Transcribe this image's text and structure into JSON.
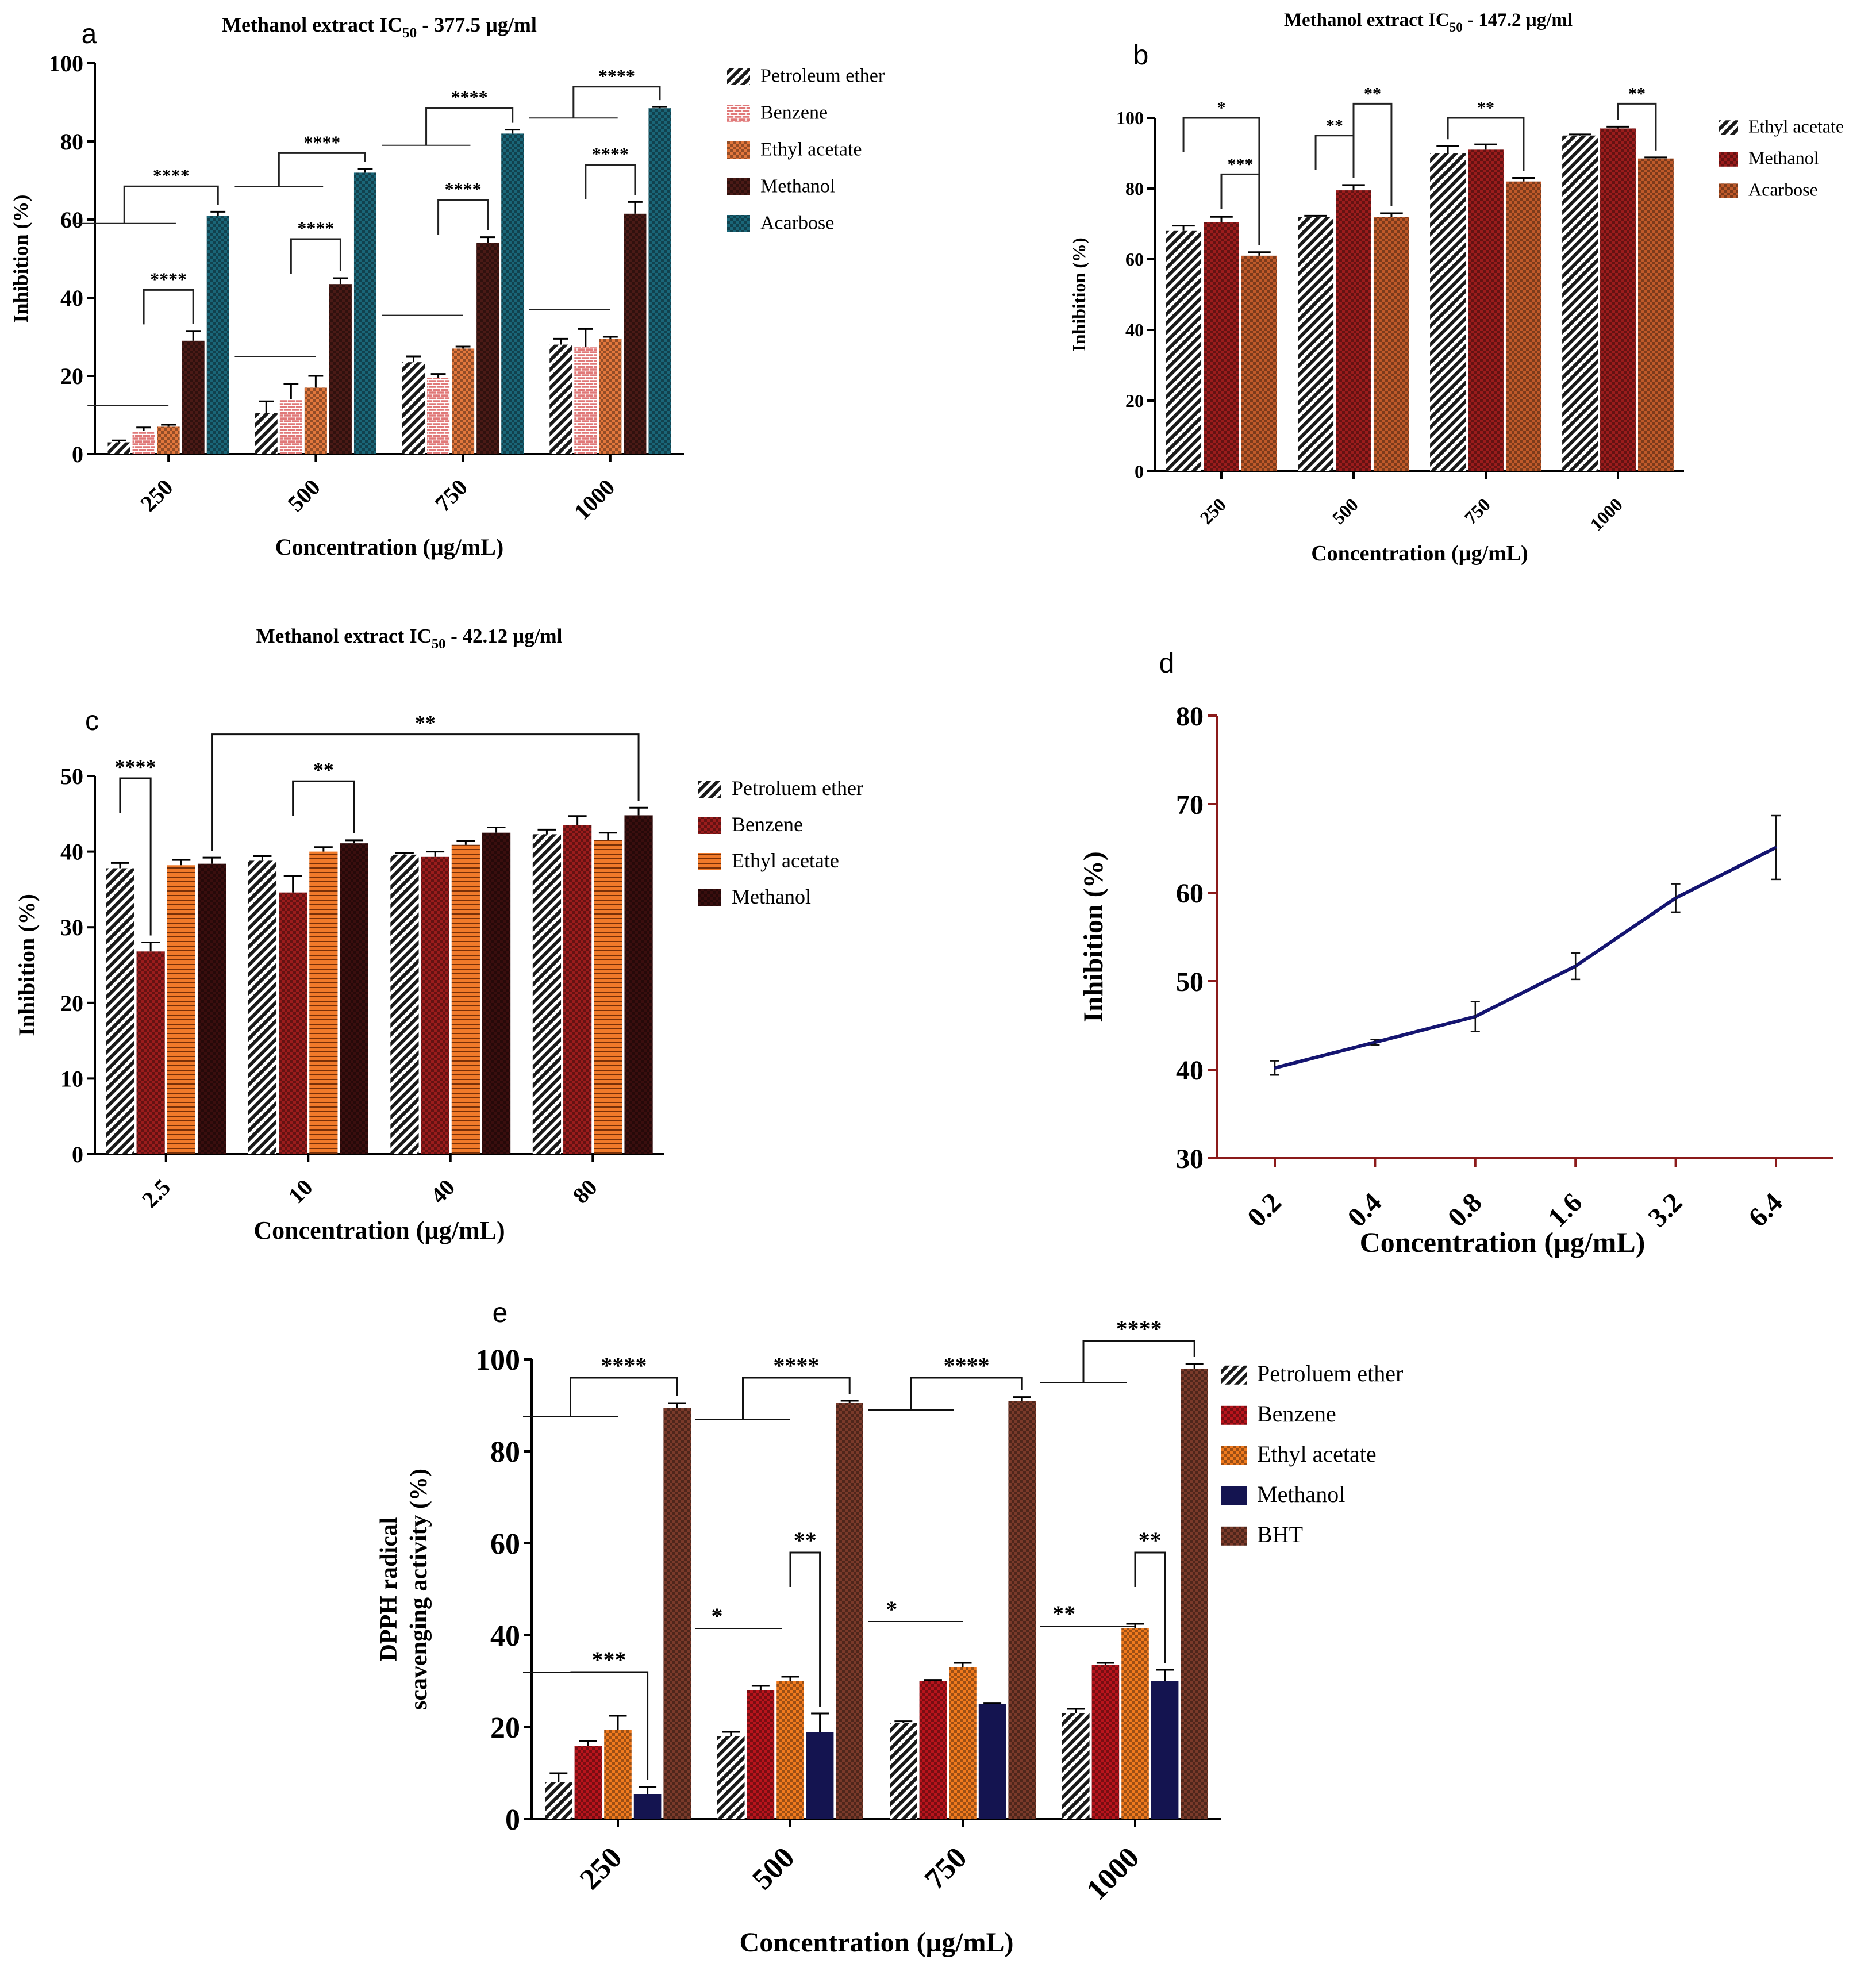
{
  "chart_data": [
    {
      "id": "a",
      "panel_label": "a",
      "type": "bar",
      "title_prefix": "Methanol extract IC",
      "title_sub": "50",
      "title_suffix": " - 377.5 µg/ml",
      "xlabel": "Concentration (µg/mL)",
      "ylabel": "Inhibition (%)",
      "ylim": [
        0,
        100
      ],
      "yticks": [
        0,
        20,
        40,
        60,
        80,
        100
      ],
      "categories": [
        "250",
        "500",
        "750",
        "1000"
      ],
      "series": [
        {
          "name": "Petroleum ether",
          "color": "#1a1a1a",
          "pattern": "diag",
          "values": [
            3,
            10.5,
            23.5,
            28
          ],
          "errors": [
            0.5,
            3,
            1.5,
            1.5
          ]
        },
        {
          "name": "Benzene",
          "color": "#e07878",
          "pattern": "bricks",
          "values": [
            6,
            14,
            19.5,
            27.5
          ],
          "errors": [
            0.8,
            4,
            1,
            4.5
          ]
        },
        {
          "name": "Ethyl acetate",
          "color": "#e2773c",
          "pattern": "checker",
          "values": [
            7,
            17,
            27,
            29.5
          ],
          "errors": [
            0.5,
            3,
            0.5,
            0.5
          ]
        },
        {
          "name": "Methanol",
          "color": "#4a1a16",
          "pattern": "checker",
          "values": [
            29,
            43.5,
            54,
            61.5
          ],
          "errors": [
            2.5,
            1.5,
            1.5,
            3
          ]
        },
        {
          "name": "Acarbose",
          "color": "#1a6678",
          "pattern": "checker",
          "values": [
            61,
            72,
            82,
            88.5
          ],
          "errors": [
            1,
            1,
            1,
            0.3
          ]
        }
      ],
      "annotations": [
        {
          "text": "****",
          "cat": 0,
          "type": "bracket",
          "from": 1,
          "to": 3,
          "level": 42
        },
        {
          "text": "****",
          "cat": 0,
          "type": "bracket_line",
          "line_level": 59,
          "line_from": -0.65,
          "line_to": 0.05,
          "to": 4,
          "level": 68.5
        },
        {
          "text": "****",
          "cat": 1,
          "type": "bracket",
          "from": 1,
          "to": 3,
          "level": 55
        },
        {
          "text": "****",
          "cat": 1,
          "type": "bracket_line",
          "line_level": 68.5,
          "line_from": -0.55,
          "line_to": 0.05,
          "to": 4,
          "level": 77
        },
        {
          "text": "****",
          "cat": 2,
          "type": "bracket",
          "from": 1,
          "to": 3,
          "level": 65
        },
        {
          "text": "****",
          "cat": 2,
          "type": "bracket_line",
          "line_level": 79,
          "line_from": -0.55,
          "line_to": 0.05,
          "to": 4,
          "level": 88.5
        },
        {
          "text": "****",
          "cat": 3,
          "type": "bracket",
          "from": 1,
          "to": 3,
          "level": 74
        },
        {
          "text": "****",
          "cat": 3,
          "type": "bracket_line",
          "line_level": 86,
          "line_from": -0.55,
          "line_to": 0.05,
          "to": 4,
          "level": 94
        }
      ],
      "baseline_lines": [
        {
          "cat": 0,
          "level": 12.5
        },
        {
          "cat": 1,
          "level": 25
        },
        {
          "cat": 2,
          "level": 35.5
        },
        {
          "cat": 3,
          "level": 37
        }
      ]
    },
    {
      "id": "b",
      "panel_label": "b",
      "type": "bar",
      "title_prefix": "Methanol extract IC",
      "title_sub": "50",
      "title_suffix": " - 147.2 µg/ml",
      "xlabel": "Concentration (µg/mL)",
      "ylabel": "Inhibition (%)",
      "ylim": [
        0,
        100
      ],
      "yticks": [
        0,
        20,
        40,
        60,
        80,
        100
      ],
      "categories": [
        "250",
        "500",
        "750",
        "1000"
      ],
      "series": [
        {
          "name": "Ethyl acetate",
          "color": "#1a1a1a",
          "pattern": "diag",
          "values": [
            68,
            72,
            90,
            95
          ],
          "errors": [
            1.5,
            0.3,
            2,
            0.3
          ]
        },
        {
          "name": "Methanol",
          "color": "#9b1c1c",
          "pattern": "checker",
          "values": [
            70.5,
            79.5,
            91,
            97
          ],
          "errors": [
            1.5,
            1.5,
            1.5,
            0.5
          ]
        },
        {
          "name": "Acarbose",
          "color": "#c05a2a",
          "pattern": "checker",
          "values": [
            61,
            72,
            82,
            88.5
          ],
          "errors": [
            1,
            1,
            1,
            0.3
          ]
        }
      ],
      "annotations": [
        {
          "text": "*",
          "cat": 0,
          "type": "bracket",
          "from": 0,
          "to": 2,
          "level": 100
        },
        {
          "text": "***",
          "cat": 0,
          "type": "bracket",
          "from": 1,
          "to": 2,
          "level": 84
        },
        {
          "text": "**",
          "cat": 1,
          "type": "bracket",
          "from": 0,
          "to": 1,
          "level": 95
        },
        {
          "text": "**",
          "cat": 1,
          "type": "bracket",
          "from": 1,
          "to": 2,
          "level": 104
        },
        {
          "text": "**",
          "cat": 2,
          "type": "bracket",
          "from": 0,
          "to": 2,
          "level": 100
        },
        {
          "text": "**",
          "cat": 3,
          "type": "bracket",
          "from": 1,
          "to": 2,
          "level": 104
        }
      ]
    },
    {
      "id": "c",
      "panel_label": "c",
      "type": "bar",
      "title_prefix": "Methanol extract IC",
      "title_sub": "50",
      "title_suffix": " - 42.12 µg/ml",
      "xlabel": "Concentration (µg/mL)",
      "ylabel": "Inhibition (%)",
      "ylim": [
        0,
        50
      ],
      "yticks": [
        0,
        10,
        20,
        30,
        40,
        50
      ],
      "categories": [
        "2.5",
        "10",
        "40",
        "80"
      ],
      "series": [
        {
          "name": "Petroluem ether",
          "color": "#1a1a1a",
          "pattern": "diag",
          "values": [
            37.8,
            38.8,
            39.6,
            42.3
          ],
          "errors": [
            0.7,
            0.6,
            0.2,
            0.6
          ]
        },
        {
          "name": "Benzene",
          "color": "#9b1c1c",
          "pattern": "checker",
          "values": [
            26.8,
            34.6,
            39.3,
            43.5
          ],
          "errors": [
            1.2,
            2.2,
            0.7,
            1.2
          ]
        },
        {
          "name": "Ethyl acetate",
          "color": "#f07a2a",
          "pattern": "hstripe",
          "values": [
            38.2,
            40,
            40.9,
            41.5
          ],
          "errors": [
            0.7,
            0.6,
            0.5,
            1
          ]
        },
        {
          "name": "Methanol",
          "color": "#3a0e0e",
          "pattern": "checker",
          "values": [
            38.4,
            41.1,
            42.5,
            44.8
          ],
          "errors": [
            0.8,
            0.4,
            0.7,
            1
          ]
        }
      ],
      "annotations": [
        {
          "text": "****",
          "cat": 0,
          "type": "bracket",
          "from": 0,
          "to": 1,
          "level": 49.7
        },
        {
          "text": "**",
          "cat": 1,
          "type": "bracket",
          "from": 1,
          "to": 3,
          "level": 49.3
        },
        {
          "text": "**",
          "cat": 0,
          "type": "long_bracket",
          "from": 3,
          "to_cat": 3,
          "to_series": 3,
          "level": 55.5
        }
      ]
    },
    {
      "id": "d",
      "panel_label": "d",
      "type": "line",
      "title": "",
      "xlabel": "Concentration (µg/mL)",
      "ylabel": "Inhibition (%)",
      "ylim": [
        30,
        80
      ],
      "yticks": [
        30,
        40,
        50,
        60,
        70,
        80
      ],
      "x": [
        "0.2",
        "0.4",
        "0.8",
        "1.6",
        "3.2",
        "6.4"
      ],
      "series": [
        {
          "name": "Inhibition",
          "color": "#141470",
          "values": [
            40.2,
            43.1,
            46,
            51.7,
            59.4,
            65.1
          ],
          "errors": [
            0.8,
            0.3,
            1.7,
            1.5,
            1.6,
            3.6
          ]
        }
      ]
    },
    {
      "id": "e",
      "panel_label": "e",
      "type": "bar",
      "title": "",
      "xlabel": "Concentration (µg/mL)",
      "ylabel_line1": "DPPH radical",
      "ylabel_line2": "scavenging activity (%)",
      "ylim": [
        0,
        100
      ],
      "yticks": [
        0,
        20,
        40,
        60,
        80,
        100
      ],
      "categories": [
        "250",
        "500",
        "750",
        "1000"
      ],
      "series": [
        {
          "name": "Petroluem ether",
          "color": "#1a1a1a",
          "pattern": "diag",
          "values": [
            8,
            18,
            21,
            23
          ],
          "errors": [
            2,
            1,
            0.3,
            1
          ]
        },
        {
          "name": "Benzene",
          "color": "#b8141c",
          "pattern": "checker",
          "values": [
            16,
            28,
            30,
            33.5
          ],
          "errors": [
            1,
            1,
            0.3,
            0.5
          ]
        },
        {
          "name": "Ethyl acetate",
          "color": "#f07a1e",
          "pattern": "checker",
          "values": [
            19.5,
            30,
            33,
            41.5
          ],
          "errors": [
            3,
            1,
            1,
            1
          ]
        },
        {
          "name": "Methanol",
          "color": "#141450",
          "pattern": "solid",
          "values": [
            5.5,
            19,
            25,
            30
          ],
          "errors": [
            1.5,
            4,
            0.3,
            2.5
          ]
        },
        {
          "name": "BHT",
          "color": "#7a3a2a",
          "pattern": "checker",
          "values": [
            89.5,
            90.5,
            91,
            98
          ],
          "errors": [
            1,
            0.5,
            0.8,
            1
          ]
        }
      ],
      "annotations": [
        {
          "text": "***",
          "cat": 0,
          "type": "bracket_line",
          "line_level": 32,
          "line_from": -0.55,
          "line_to": 0,
          "to": 3,
          "level": 32
        },
        {
          "text": "****",
          "cat": 0,
          "type": "bracket_line",
          "line_level": 87.5,
          "line_from": -0.55,
          "line_to": 0,
          "to": 4,
          "level": 96
        },
        {
          "text": "*",
          "cat": 1,
          "type": "bracket_line",
          "line_level": 41.5,
          "line_from": -0.55,
          "line_to": -0.05,
          "to": -1,
          "level": 41.5
        },
        {
          "text": "**",
          "cat": 1,
          "type": "bracket",
          "from": 2,
          "to": 3,
          "level": 58
        },
        {
          "text": "****",
          "cat": 1,
          "type": "bracket_line",
          "line_level": 87,
          "line_from": -0.55,
          "line_to": 0,
          "to": 4,
          "level": 96
        },
        {
          "text": "*",
          "cat": 2,
          "type": "bracket_line",
          "line_level": 43,
          "line_from": -0.55,
          "line_to": 0,
          "to": -1,
          "level": 43
        },
        {
          "text": "****",
          "cat": 2,
          "type": "bracket_line",
          "line_level": 89,
          "line_from": -0.55,
          "line_to": -0.05,
          "to": 4,
          "level": 96
        },
        {
          "text": "**",
          "cat": 3,
          "type": "bracket_line",
          "line_level": 42,
          "line_from": -0.55,
          "line_to": 0,
          "to": -1,
          "level": 42
        },
        {
          "text": "**",
          "cat": 3,
          "type": "bracket",
          "from": 2,
          "to": 3,
          "level": 58
        },
        {
          "text": "****",
          "cat": 3,
          "type": "bracket_line",
          "line_level": 95,
          "line_from": -0.55,
          "line_to": -0.05,
          "to": 4,
          "level": 104
        }
      ]
    }
  ]
}
